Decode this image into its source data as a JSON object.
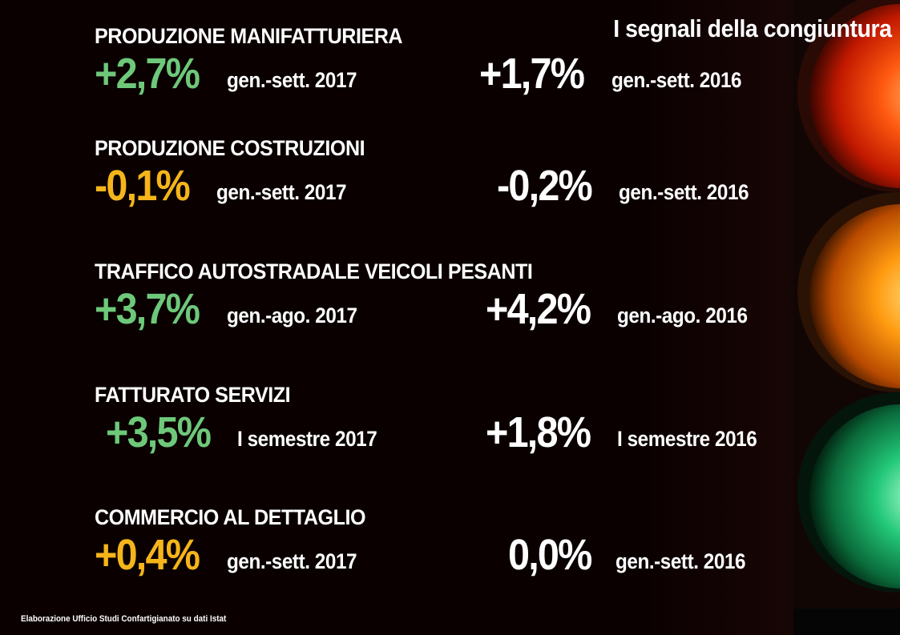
{
  "title": "I segnali della congiuntura",
  "sections": [
    {
      "heading": "PRODUZIONE MANIFATTURIERA",
      "current": {
        "value": "+2,7%",
        "period": "gen.-sett. 2017",
        "color": "#6ec87a"
      },
      "previous": {
        "value": "+1,7%",
        "period": "gen.-sett. 2016",
        "color": "#ffffff"
      }
    },
    {
      "heading": "PRODUZIONE COSTRUZIONI",
      "current": {
        "value": "-0,1%",
        "period": "gen.-sett. 2017",
        "color": "#f5b51a"
      },
      "previous": {
        "value": "-0,2%",
        "period": "gen.-sett. 2016",
        "color": "#ffffff"
      }
    },
    {
      "heading": "TRAFFICO AUTOSTRADALE VEICOLI PESANTI",
      "current": {
        "value": "+3,7%",
        "period": "gen.-ago. 2017",
        "color": "#6ec87a"
      },
      "previous": {
        "value": "+4,2%",
        "period": "gen.-ago. 2016",
        "color": "#ffffff"
      }
    },
    {
      "heading": "FATTURATO SERVIZI",
      "current": {
        "value": "+3,5%",
        "period": "I semestre 2017",
        "color": "#6ec87a"
      },
      "previous": {
        "value": "+1,8%",
        "period": "I semestre 2016",
        "color": "#ffffff"
      }
    },
    {
      "heading": "COMMERCIO AL DETTAGLIO",
      "current": {
        "value": "+0,4%",
        "period": "gen.-sett. 2017",
        "color": "#f5b51a"
      },
      "previous": {
        "value": "0,0%",
        "period": "gen.-sett. 2016",
        "color": "#ffffff"
      }
    }
  ],
  "footer": "Elaborazione Ufficio Studi Confartigianato su dati Istat",
  "icons": {
    "traffic_light": "traffic-light-icon"
  }
}
